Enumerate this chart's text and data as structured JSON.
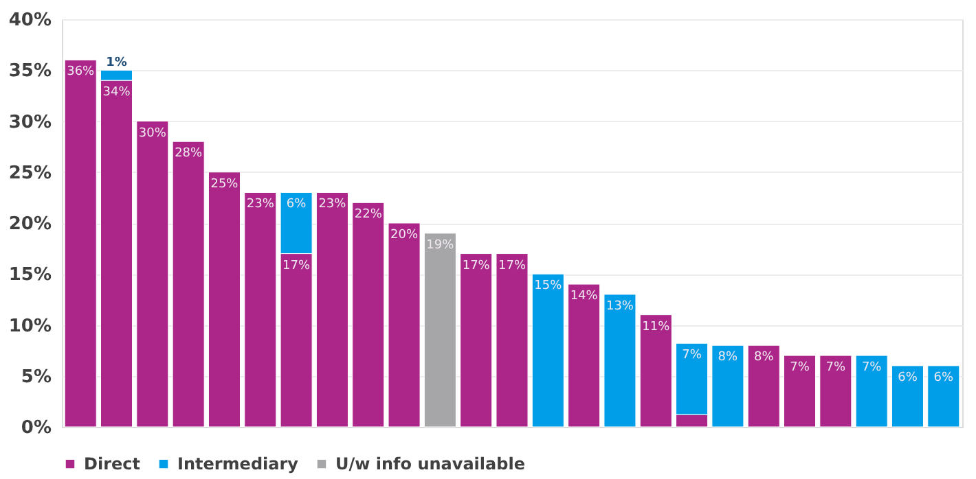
{
  "chart_data": {
    "type": "bar",
    "stacked": true,
    "categories": [
      null,
      null,
      null,
      null,
      null,
      null,
      null,
      null,
      null,
      null,
      null,
      null,
      null,
      null,
      null,
      null,
      null,
      null,
      null,
      null,
      null,
      null,
      null,
      null,
      null
    ],
    "series": [
      {
        "name": "Direct",
        "color": "#ab2688",
        "values": [
          36,
          34,
          30,
          28,
          25,
          23,
          17,
          23,
          22,
          20,
          null,
          17,
          17,
          null,
          14,
          null,
          11,
          1.2,
          null,
          8,
          7,
          7,
          null,
          null,
          null
        ],
        "value_labels": [
          "36%",
          "34%",
          "30%",
          "28%",
          "25%",
          "23%",
          "17%",
          "23%",
          "22%",
          "20%",
          null,
          "17%",
          "17%",
          null,
          "14%",
          null,
          "11%",
          null,
          null,
          "8%",
          "7%",
          "7%",
          null,
          null,
          null
        ]
      },
      {
        "name": "Intermediary",
        "color": "#009ee8",
        "values": [
          null,
          1,
          null,
          null,
          null,
          null,
          6,
          null,
          null,
          null,
          null,
          null,
          null,
          15,
          null,
          13,
          null,
          7,
          8,
          null,
          null,
          null,
          7,
          6,
          6
        ],
        "value_labels": [
          null,
          "1%",
          null,
          null,
          null,
          null,
          "6%",
          null,
          null,
          null,
          null,
          null,
          null,
          "15%",
          null,
          "13%",
          null,
          "7%",
          "8%",
          null,
          null,
          null,
          "7%",
          "6%",
          "6%"
        ]
      },
      {
        "name": "U/w info unavailable",
        "color": "#a6a6a8",
        "values": [
          null,
          null,
          null,
          null,
          null,
          null,
          null,
          null,
          null,
          null,
          19,
          null,
          null,
          null,
          null,
          null,
          null,
          null,
          null,
          null,
          null,
          null,
          null,
          null,
          null
        ],
        "value_labels": [
          null,
          null,
          null,
          null,
          null,
          null,
          null,
          null,
          null,
          null,
          "19%",
          null,
          null,
          null,
          null,
          null,
          null,
          null,
          null,
          null,
          null,
          null,
          null,
          null,
          null
        ]
      }
    ],
    "ylim": [
      0,
      40
    ],
    "yticks": [
      {
        "value": 0,
        "label": "0%"
      },
      {
        "value": 5,
        "label": "5%"
      },
      {
        "value": 10,
        "label": "10%"
      },
      {
        "value": 15,
        "label": "15%"
      },
      {
        "value": 20,
        "label": "20%"
      },
      {
        "value": 25,
        "label": "25%"
      },
      {
        "value": 30,
        "label": "30%"
      },
      {
        "value": 35,
        "label": "35%"
      },
      {
        "value": 40,
        "label": "40%"
      }
    ],
    "grid": "y",
    "legend": "bottom"
  }
}
